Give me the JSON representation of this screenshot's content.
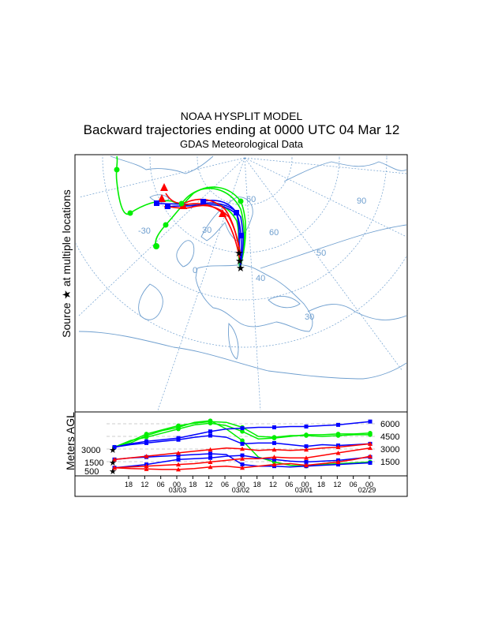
{
  "header": {
    "model": "NOAA HYSPLIT MODEL",
    "subtitle": "Backward trajectories ending at 0000 UTC 04 Mar 12",
    "data_source": "GDAS Meteorological Data"
  },
  "map": {
    "side_label": "Source ★ at multiple locations",
    "grid_labels": [
      "-30",
      "0",
      "30",
      "60",
      "90",
      "60",
      "50",
      "40",
      "30"
    ],
    "colors": {
      "red": "#ff0000",
      "blue": "#0000ff",
      "green": "#00ee00",
      "grid": "#6f9fcf",
      "coast": "#6f9fcf"
    }
  },
  "profile": {
    "ylabel": "Meters AGL",
    "left_levels": [
      "3000",
      "1500",
      "500"
    ],
    "right_levels": [
      "6000",
      "4500",
      "3000",
      "1500"
    ],
    "time_ticks": [
      "18",
      "12",
      "06",
      "00",
      "18",
      "12",
      "06",
      "00",
      "18",
      "12",
      "06",
      "00",
      "18",
      "12",
      "06",
      "00"
    ],
    "date_labels": [
      "03/03",
      "03/02",
      "03/01",
      "02/29"
    ]
  },
  "chart_data": {
    "type": "line",
    "x_hours_before_end": [
      0,
      6,
      12,
      18,
      24,
      30,
      36,
      42,
      48,
      54,
      60,
      66,
      72,
      78,
      84,
      90,
      96
    ],
    "series": [
      {
        "color": "#00ee00",
        "values": [
          3000,
          3800,
          4200,
          4700,
          5200,
          5700,
          5900,
          5600,
          4900,
          4000,
          4100,
          4300,
          4500,
          4500,
          4600,
          4600,
          4700
        ]
      },
      {
        "color": "#00ee00",
        "values": [
          3000,
          3500,
          4400,
          5000,
          5400,
          6000,
          6200,
          5200,
          3800,
          1800,
          1200,
          800,
          700,
          900,
          1000,
          1100,
          1200
        ]
      },
      {
        "color": "#00ee00",
        "values": [
          3000,
          3700,
          4600,
          5100,
          5600,
          5900,
          6100,
          6000,
          5400,
          4300,
          4200,
          4400,
          4400,
          4300,
          4400,
          4500,
          4500
        ]
      },
      {
        "color": "#0000ff",
        "values": [
          3000,
          3300,
          3500,
          3700,
          3900,
          4200,
          4400,
          4200,
          3400,
          3500,
          3500,
          3300,
          3100,
          3300,
          3200,
          3300,
          3400
        ]
      },
      {
        "color": "#0000ff",
        "values": [
          3000,
          3400,
          3700,
          3900,
          4100,
          4500,
          4900,
          5200,
          5300,
          5400,
          5400,
          5500,
          5500,
          5600,
          5700,
          5900,
          6100
        ]
      },
      {
        "color": "#0000ff",
        "values": [
          1500,
          1700,
          1800,
          1900,
          2000,
          2100,
          2200,
          2100,
          900,
          700,
          700,
          600,
          700,
          800,
          900,
          1000,
          1100
        ]
      },
      {
        "color": "#0000ff",
        "values": [
          500,
          700,
          900,
          1200,
          1500,
          1600,
          1700,
          1900,
          2000,
          1700,
          1500,
          1300,
          1200,
          1300,
          1400,
          1600,
          1800
        ]
      },
      {
        "color": "#ff0000",
        "values": [
          1500,
          1700,
          1900,
          2100,
          2300,
          2500,
          2700,
          2900,
          2800,
          2600,
          2700,
          2600,
          2700,
          2900,
          3000,
          3200,
          3400
        ]
      },
      {
        "color": "#ff0000",
        "values": [
          500,
          600,
          700,
          800,
          900,
          1000,
          1200,
          1400,
          1600,
          1600,
          1800,
          1700,
          1700,
          2000,
          2300,
          2600,
          2900
        ]
      },
      {
        "color": "#ff0000",
        "values": [
          500,
          400,
          350,
          300,
          300,
          400,
          600,
          700,
          500,
          700,
          900,
          1000,
          800,
          1000,
          1200,
          1500,
          1900
        ]
      }
    ]
  }
}
